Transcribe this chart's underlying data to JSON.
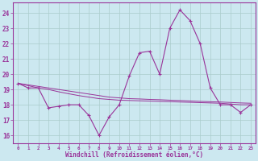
{
  "xlabel": "Windchill (Refroidissement éolien,°C)",
  "background_color": "#cce8f0",
  "grid_color": "#aacccc",
  "line_color": "#993399",
  "hours": [
    0,
    1,
    2,
    3,
    4,
    5,
    6,
    7,
    8,
    9,
    10,
    11,
    12,
    13,
    14,
    15,
    16,
    17,
    18,
    19,
    20,
    21,
    22,
    23
  ],
  "windchill": [
    19.4,
    19.1,
    19.1,
    17.8,
    17.9,
    18.0,
    18.0,
    17.3,
    16.0,
    17.2,
    18.0,
    19.9,
    21.4,
    21.5,
    20.0,
    23.0,
    24.2,
    23.5,
    22.0,
    19.1,
    18.0,
    18.0,
    17.5,
    18.0
  ],
  "smooth_line1": [
    19.4,
    19.25,
    19.1,
    19.0,
    18.85,
    18.72,
    18.6,
    18.5,
    18.4,
    18.35,
    18.3,
    18.28,
    18.26,
    18.24,
    18.22,
    18.2,
    18.18,
    18.16,
    18.14,
    18.12,
    18.1,
    18.05,
    18.0,
    18.0
  ],
  "smooth_line2": [
    19.4,
    19.3,
    19.2,
    19.1,
    19.0,
    18.9,
    18.8,
    18.7,
    18.6,
    18.5,
    18.45,
    18.4,
    18.38,
    18.35,
    18.33,
    18.3,
    18.28,
    18.25,
    18.22,
    18.2,
    18.18,
    18.15,
    18.12,
    18.1
  ],
  "ylim": [
    15.5,
    24.7
  ],
  "yticks": [
    16,
    17,
    18,
    19,
    20,
    21,
    22,
    23,
    24
  ],
  "xlim": [
    -0.5,
    23.5
  ]
}
